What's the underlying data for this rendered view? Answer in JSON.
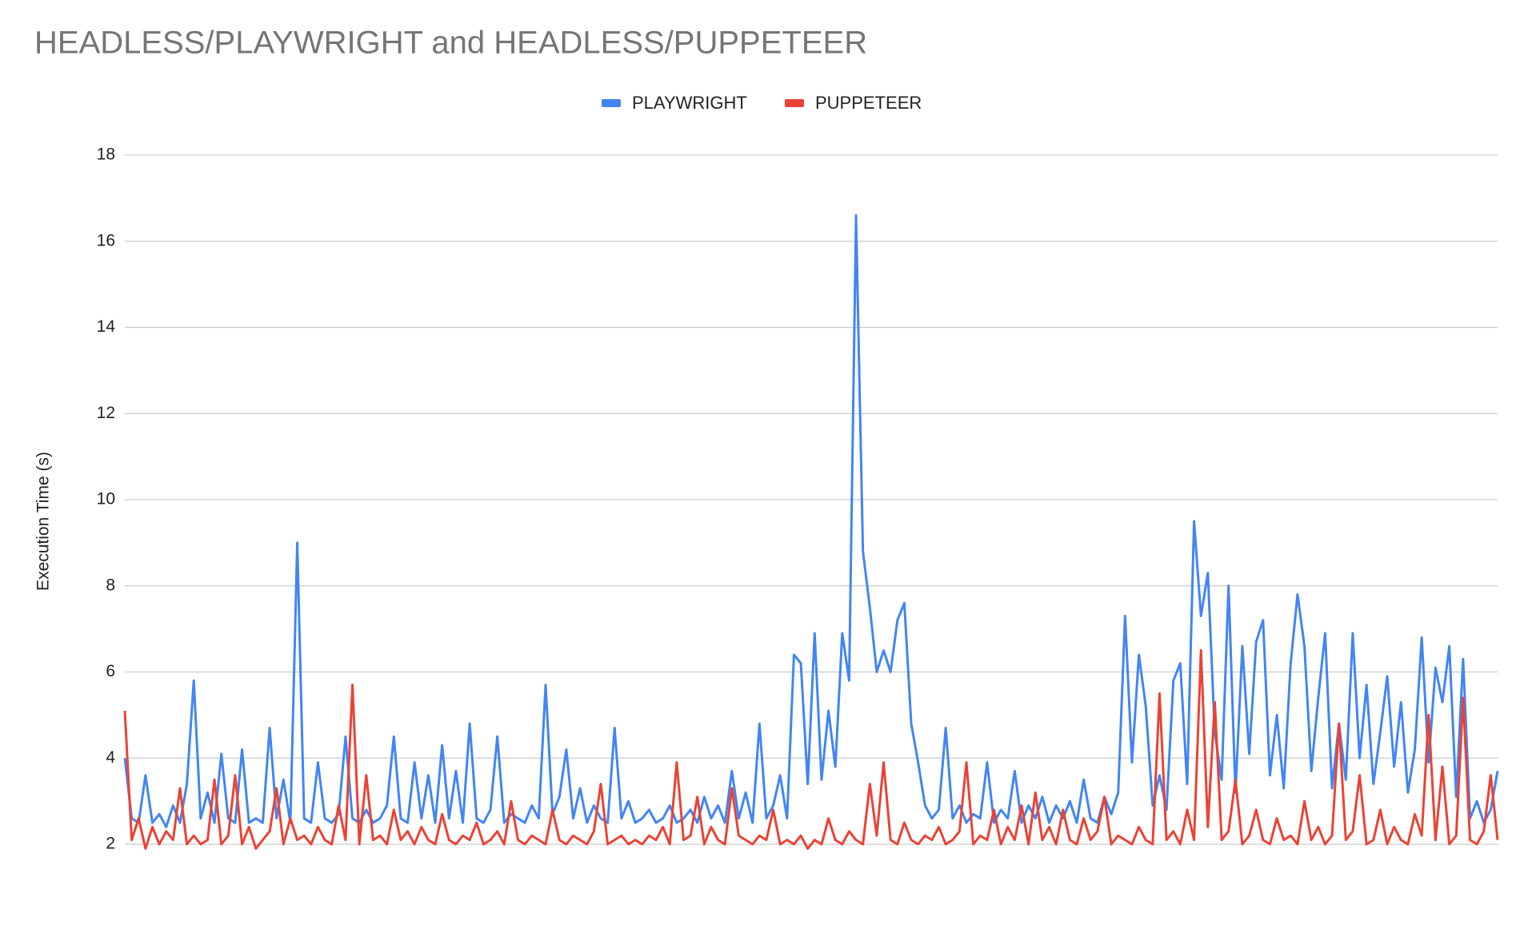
{
  "chart_data": {
    "type": "line",
    "title": "HEADLESS/PLAYWRIGHT and HEADLESS/PUPPETEER",
    "y_label": "Execution Time (s)",
    "legend": "top",
    "grid": true,
    "ylim": [
      2,
      18
    ],
    "yticks": [
      2,
      4,
      6,
      8,
      10,
      12,
      14,
      16,
      18
    ],
    "series": [
      {
        "name": "PLAYWRIGHT",
        "color": "#4285f4",
        "values": [
          4.0,
          2.6,
          2.5,
          3.6,
          2.5,
          2.7,
          2.4,
          2.9,
          2.5,
          3.4,
          5.8,
          2.6,
          3.2,
          2.5,
          4.1,
          2.6,
          2.5,
          4.2,
          2.5,
          2.6,
          2.5,
          4.7,
          2.6,
          3.5,
          2.5,
          9.0,
          2.6,
          2.5,
          3.9,
          2.6,
          2.5,
          2.7,
          4.5,
          2.6,
          2.5,
          2.8,
          2.5,
          2.6,
          2.9,
          4.5,
          2.6,
          2.5,
          3.9,
          2.6,
          3.6,
          2.5,
          4.3,
          2.6,
          3.7,
          2.5,
          4.8,
          2.6,
          2.5,
          2.8,
          4.5,
          2.5,
          2.7,
          2.6,
          2.5,
          2.9,
          2.6,
          5.7,
          2.7,
          3.1,
          4.2,
          2.6,
          3.3,
          2.5,
          2.9,
          2.6,
          2.5,
          4.7,
          2.6,
          3.0,
          2.5,
          2.6,
          2.8,
          2.5,
          2.6,
          2.9,
          2.5,
          2.6,
          2.8,
          2.5,
          3.1,
          2.6,
          2.9,
          2.5,
          3.7,
          2.6,
          3.2,
          2.5,
          4.8,
          2.6,
          2.9,
          3.6,
          2.6,
          6.4,
          6.2,
          3.4,
          6.9,
          3.5,
          5.1,
          3.8,
          6.9,
          5.8,
          16.6,
          8.8,
          7.5,
          6.0,
          6.5,
          6.0,
          7.2,
          7.6,
          4.8,
          3.9,
          2.9,
          2.6,
          2.8,
          4.7,
          2.6,
          2.9,
          2.5,
          2.7,
          2.6,
          3.9,
          2.5,
          2.8,
          2.6,
          3.7,
          2.5,
          2.9,
          2.6,
          3.1,
          2.5,
          2.9,
          2.6,
          3.0,
          2.5,
          3.5,
          2.6,
          2.5,
          3.1,
          2.7,
          3.2,
          7.3,
          3.9,
          6.4,
          5.2,
          2.9,
          3.6,
          2.8,
          5.8,
          6.2,
          3.4,
          9.5,
          7.3,
          8.3,
          4.6,
          3.5,
          8.0,
          3.2,
          6.6,
          4.1,
          6.7,
          7.2,
          3.6,
          5.0,
          3.3,
          6.2,
          7.8,
          6.6,
          3.7,
          5.4,
          6.9,
          3.3,
          4.8,
          3.5,
          6.9,
          4.0,
          5.7,
          3.4,
          4.6,
          5.9,
          3.8,
          5.3,
          3.2,
          4.2,
          6.8,
          3.9,
          6.1,
          5.3,
          6.6,
          3.1,
          6.3,
          2.6,
          3.0,
          2.5,
          2.8,
          3.7
        ]
      },
      {
        "name": "PUPPETEER",
        "color": "#ea4335",
        "values": [
          5.1,
          2.1,
          2.6,
          1.9,
          2.4,
          2.0,
          2.3,
          2.1,
          3.3,
          2.0,
          2.2,
          2.0,
          2.1,
          3.5,
          2.0,
          2.2,
          3.6,
          2.0,
          2.4,
          1.9,
          2.1,
          2.3,
          3.3,
          2.0,
          2.6,
          2.1,
          2.2,
          2.0,
          2.4,
          2.1,
          2.0,
          2.9,
          2.1,
          5.7,
          2.0,
          3.6,
          2.1,
          2.2,
          2.0,
          2.8,
          2.1,
          2.3,
          2.0,
          2.4,
          2.1,
          2.0,
          2.7,
          2.1,
          2.0,
          2.2,
          2.1,
          2.5,
          2.0,
          2.1,
          2.3,
          2.0,
          3.0,
          2.1,
          2.0,
          2.2,
          2.1,
          2.0,
          2.8,
          2.1,
          2.0,
          2.2,
          2.1,
          2.0,
          2.3,
          3.4,
          2.0,
          2.1,
          2.2,
          2.0,
          2.1,
          2.0,
          2.2,
          2.1,
          2.4,
          2.0,
          3.9,
          2.1,
          2.2,
          3.1,
          2.0,
          2.4,
          2.1,
          2.0,
          3.3,
          2.2,
          2.1,
          2.0,
          2.2,
          2.1,
          2.8,
          2.0,
          2.1,
          2.0,
          2.2,
          1.9,
          2.1,
          2.0,
          2.6,
          2.1,
          2.0,
          2.3,
          2.1,
          2.0,
          3.4,
          2.2,
          3.9,
          2.1,
          2.0,
          2.5,
          2.1,
          2.0,
          2.2,
          2.1,
          2.4,
          2.0,
          2.1,
          2.3,
          3.9,
          2.0,
          2.2,
          2.1,
          2.8,
          2.0,
          2.4,
          2.1,
          2.9,
          2.0,
          3.2,
          2.1,
          2.4,
          2.0,
          2.8,
          2.1,
          2.0,
          2.6,
          2.1,
          2.3,
          3.1,
          2.0,
          2.2,
          2.1,
          2.0,
          2.4,
          2.1,
          2.0,
          5.5,
          2.1,
          2.3,
          2.0,
          2.8,
          2.1,
          6.5,
          2.4,
          5.3,
          2.1,
          2.3,
          3.5,
          2.0,
          2.2,
          2.8,
          2.1,
          2.0,
          2.6,
          2.1,
          2.2,
          2.0,
          3.0,
          2.1,
          2.4,
          2.0,
          2.2,
          4.8,
          2.1,
          2.3,
          3.6,
          2.0,
          2.1,
          2.8,
          2.0,
          2.4,
          2.1,
          2.0,
          2.7,
          2.2,
          5.0,
          2.1,
          3.8,
          2.0,
          2.2,
          5.4,
          2.1,
          2.0,
          2.3,
          3.6,
          2.1
        ]
      }
    ]
  }
}
